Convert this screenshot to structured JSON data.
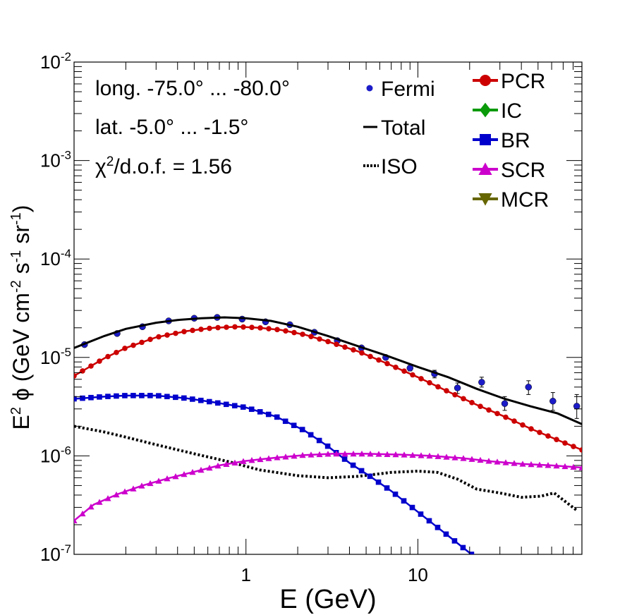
{
  "chart_data": {
    "type": "scatter",
    "xlabel": "E (GeV)",
    "ylabel": "E² ϕ (GeV cm⁻² s⁻¹ sr⁻¹)",
    "ylabel_parts": {
      "base": "E",
      "sup2": "2",
      "mid": " ϕ (GeV cm",
      "sup_m2": "-2",
      "s": " s",
      "sup_m1a": "-1",
      "sr": " sr",
      "sup_m1b": "-1",
      "close": ")"
    },
    "xlim": [
      0.1,
      90
    ],
    "ylim": [
      1e-07,
      0.01
    ],
    "xscale": "log",
    "yscale": "log",
    "x_tick_labels": [
      {
        "value": 1,
        "label": "1"
      },
      {
        "value": 10,
        "label": "10"
      }
    ],
    "y_tick_labels": [
      {
        "value": 1e-07,
        "base": "10",
        "exp": "-7"
      },
      {
        "value": 1e-06,
        "base": "10",
        "exp": "-6"
      },
      {
        "value": 1e-05,
        "base": "10",
        "exp": "-5"
      },
      {
        "value": 0.0001,
        "base": "10",
        "exp": "-4"
      },
      {
        "value": 0.001,
        "base": "10",
        "exp": "-3"
      },
      {
        "value": 0.01,
        "base": "10",
        "exp": "-2"
      }
    ],
    "annotations": {
      "longitude": "long. -75.0° ... -80.0°",
      "latitude": "lat. -5.0° ... -1.5°",
      "chi2_prefix": "χ",
      "chi2_sup": "2",
      "chi2_suffix": "/d.o.f. = 1.56"
    },
    "legend_left": [
      {
        "key": "fermi",
        "label": "Fermi"
      },
      {
        "key": "total",
        "label": "Total"
      },
      {
        "key": "iso",
        "label": "ISO"
      }
    ],
    "legend_right": [
      {
        "key": "pcr",
        "label": "PCR"
      },
      {
        "key": "ic",
        "label": "IC"
      },
      {
        "key": "br",
        "label": "BR"
      },
      {
        "key": "scr",
        "label": "SCR"
      },
      {
        "key": "mcr",
        "label": "MCR"
      }
    ],
    "series": [
      {
        "name": "Fermi",
        "key": "fermi",
        "color": "#1c1cc8",
        "marker": "circle-errorbars",
        "points": [
          {
            "x": 0.115,
            "y": 1.35e-05,
            "lo": 1.3e-05,
            "hi": 1.4e-05
          },
          {
            "x": 0.178,
            "y": 1.75e-05,
            "lo": 1.7e-05,
            "hi": 1.8e-05
          },
          {
            "x": 0.25,
            "y": 2.05e-05,
            "lo": 2e-05,
            "hi": 2.1e-05
          },
          {
            "x": 0.355,
            "y": 2.35e-05,
            "lo": 2.3e-05,
            "hi": 2.4e-05
          },
          {
            "x": 0.5,
            "y": 2.5e-05,
            "lo": 2.45e-05,
            "hi": 2.55e-05
          },
          {
            "x": 0.68,
            "y": 2.55e-05,
            "lo": 2.5e-05,
            "hi": 2.6e-05
          },
          {
            "x": 0.95,
            "y": 2.45e-05,
            "lo": 2.4e-05,
            "hi": 2.5e-05
          },
          {
            "x": 1.3,
            "y": 2.3e-05,
            "lo": 2.25e-05,
            "hi": 2.35e-05
          },
          {
            "x": 1.8,
            "y": 2.15e-05,
            "lo": 2.1e-05,
            "hi": 2.2e-05
          },
          {
            "x": 2.5,
            "y": 1.8e-05,
            "lo": 1.75e-05,
            "hi": 1.85e-05
          },
          {
            "x": 3.4,
            "y": 1.48e-05,
            "lo": 1.43e-05,
            "hi": 1.53e-05
          },
          {
            "x": 4.7,
            "y": 1.25e-05,
            "lo": 1.2e-05,
            "hi": 1.3e-05
          },
          {
            "x": 6.5,
            "y": 1e-05,
            "lo": 9.5e-06,
            "hi": 1.05e-05
          },
          {
            "x": 9.0,
            "y": 7.8e-06,
            "lo": 7.3e-06,
            "hi": 8.3e-06
          },
          {
            "x": 12.5,
            "y": 6.8e-06,
            "lo": 6.2e-06,
            "hi": 7.4e-06
          },
          {
            "x": 17,
            "y": 4.9e-06,
            "lo": 4.3e-06,
            "hi": 5.5e-06
          },
          {
            "x": 23.5,
            "y": 5.6e-06,
            "lo": 5e-06,
            "hi": 6.3e-06
          },
          {
            "x": 32,
            "y": 3.4e-06,
            "lo": 2.9e-06,
            "hi": 4e-06
          },
          {
            "x": 44,
            "y": 5e-06,
            "lo": 4.2e-06,
            "hi": 5.8e-06
          },
          {
            "x": 61,
            "y": 3.6e-06,
            "lo": 2.9e-06,
            "hi": 4.4e-06
          },
          {
            "x": 84,
            "y": 3.2e-06,
            "lo": 2.4e-06,
            "hi": 4.2e-06
          }
        ]
      },
      {
        "name": "Total",
        "key": "total",
        "color": "#000000",
        "marker": "line",
        "x": [
          0.1,
          0.15,
          0.2,
          0.3,
          0.4,
          0.55,
          0.75,
          1.0,
          1.4,
          2.0,
          3.0,
          4.5,
          6.5,
          10,
          15,
          22,
          32,
          45,
          65,
          90
        ],
        "y": [
          1.25e-05,
          1.65e-05,
          1.95e-05,
          2.25e-05,
          2.4e-05,
          2.5e-05,
          2.55e-05,
          2.5e-05,
          2.35e-05,
          2.05e-05,
          1.65e-05,
          1.3e-05,
          1.05e-05,
          8e-06,
          6.3e-06,
          4.8e-06,
          3.8e-06,
          3.2e-06,
          2.7e-06,
          2.1e-06
        ]
      },
      {
        "name": "ISO",
        "key": "iso",
        "color": "#000000",
        "marker": "dotted",
        "x": [
          0.1,
          0.15,
          0.2,
          0.3,
          0.5,
          0.8,
          1.2,
          2.0,
          3.0,
          4.5,
          7.0,
          10,
          13,
          17,
          22,
          30,
          40,
          52,
          62,
          84
        ],
        "y": [
          2e-06,
          1.75e-06,
          1.55e-06,
          1.3e-06,
          1.05e-06,
          8.7e-07,
          7.2e-07,
          6.3e-07,
          6e-07,
          6.2e-07,
          6.8e-07,
          7e-07,
          6.8e-07,
          5.8e-07,
          4.6e-07,
          4.2e-07,
          3.8e-07,
          3.9e-07,
          4.2e-07,
          2.8e-07
        ]
      },
      {
        "name": "PCR",
        "key": "pcr",
        "color": "#cc0000",
        "marker": "circle",
        "x": [
          0.1,
          0.15,
          0.2,
          0.3,
          0.45,
          0.65,
          0.9,
          1.2,
          1.6,
          2.2,
          3.0,
          4.5,
          6.5,
          10,
          15,
          22,
          32,
          45,
          65,
          90
        ],
        "y": [
          6.5e-06,
          9.8e-06,
          1.25e-05,
          1.6e-05,
          1.85e-05,
          2e-05,
          2.05e-05,
          2e-05,
          1.9e-05,
          1.7e-05,
          1.45e-05,
          1.15e-05,
          8.8e-06,
          6.3e-06,
          4.5e-06,
          3.3e-06,
          2.5e-06,
          1.9e-06,
          1.45e-06,
          1.15e-06
        ]
      },
      {
        "name": "IC",
        "key": "ic",
        "color": "#0a9a0a",
        "marker": "diamond",
        "x": [],
        "y": []
      },
      {
        "name": "BR",
        "key": "br",
        "color": "#0000cc",
        "marker": "square",
        "x": [
          0.1,
          0.15,
          0.2,
          0.3,
          0.45,
          0.65,
          1.0,
          1.5,
          2.2,
          3.0,
          4.0,
          5.2,
          7.0,
          10,
          14,
          20.5
        ],
        "y": [
          3.8e-06,
          4e-06,
          4.1e-06,
          4.1e-06,
          3.85e-06,
          3.5e-06,
          3.1e-06,
          2.5e-06,
          1.8e-06,
          1.25e-06,
          8.5e-07,
          6.3e-07,
          4.4e-07,
          2.7e-07,
          1.7e-07,
          1e-07
        ]
      },
      {
        "name": "SCR",
        "key": "scr",
        "color": "#cc00cc",
        "marker": "triangle",
        "x": [
          0.1,
          0.13,
          0.18,
          0.25,
          0.35,
          0.5,
          0.7,
          1.0,
          1.5,
          2.2,
          3.2,
          5.0,
          8.0,
          12,
          18,
          27,
          40,
          60,
          90
        ],
        "y": [
          2.2e-07,
          3.2e-07,
          4.1e-07,
          5e-07,
          5.9e-07,
          6.9e-07,
          8e-07,
          8.9e-07,
          9.6e-07,
          1.02e-06,
          1.05e-06,
          1.05e-06,
          1.03e-06,
          1e-06,
          9.5e-07,
          8.8e-07,
          8.3e-07,
          8e-07,
          7.6e-07
        ]
      },
      {
        "name": "MCR",
        "key": "mcr",
        "color": "#666600",
        "marker": "triangle-down",
        "x": [],
        "y": []
      }
    ]
  }
}
